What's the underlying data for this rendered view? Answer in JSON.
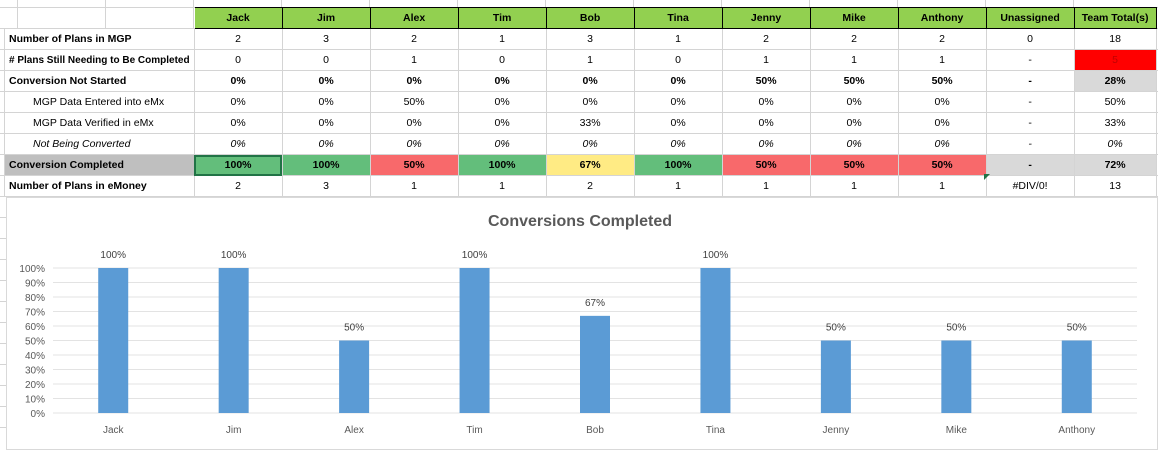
{
  "sheet": {
    "header": [
      "Jack",
      "Jim",
      "Alex",
      "Tim",
      "Bob",
      "Tina",
      "Jenny",
      "Mike",
      "Anthony",
      "Unassigned",
      "Team Total(s)"
    ],
    "rows": {
      "plans_mgp": {
        "label": "Number of Plans in MGP",
        "values": [
          "2",
          "3",
          "2",
          "1",
          "3",
          "1",
          "2",
          "2",
          "2",
          "0",
          "18"
        ]
      },
      "still_needing": {
        "label": "# Plans Still Needing to Be Completed",
        "values": [
          "0",
          "0",
          "1",
          "0",
          "1",
          "0",
          "1",
          "1",
          "1",
          "-",
          "5"
        ]
      },
      "not_started": {
        "label": "Conversion Not Started",
        "values": [
          "0%",
          "0%",
          "0%",
          "0%",
          "0%",
          "0%",
          "50%",
          "50%",
          "50%",
          "-",
          "28%"
        ]
      },
      "data_entered": {
        "label": "MGP Data Entered into eMx",
        "values": [
          "0%",
          "0%",
          "50%",
          "0%",
          "0%",
          "0%",
          "0%",
          "0%",
          "0%",
          "-",
          "50%"
        ]
      },
      "data_verified": {
        "label": "MGP Data Verified in eMx",
        "values": [
          "0%",
          "0%",
          "0%",
          "0%",
          "33%",
          "0%",
          "0%",
          "0%",
          "0%",
          "-",
          "33%"
        ]
      },
      "not_converted": {
        "label": "Not Being Converted",
        "values": [
          "0%",
          "0%",
          "0%",
          "0%",
          "0%",
          "0%",
          "0%",
          "0%",
          "0%",
          "-",
          "0%"
        ]
      },
      "completed": {
        "label": "Conversion Completed",
        "values": [
          "100%",
          "100%",
          "50%",
          "100%",
          "67%",
          "100%",
          "50%",
          "50%",
          "50%",
          "-",
          "72%"
        ]
      },
      "plans_emoney": {
        "label": "Number of Plans in eMoney",
        "values": [
          "2",
          "3",
          "1",
          "1",
          "2",
          "1",
          "1",
          "1",
          "1",
          "#DIV/0!",
          "13"
        ]
      }
    },
    "completed_colors": [
      "g",
      "g",
      "r",
      "g",
      "y",
      "g",
      "r",
      "r",
      "r",
      "",
      "total"
    ]
  },
  "chart_data": {
    "type": "bar",
    "title": "Conversions Completed",
    "categories": [
      "Jack",
      "Jim",
      "Alex",
      "Tim",
      "Bob",
      "Tina",
      "Jenny",
      "Mike",
      "Anthony"
    ],
    "values": [
      100,
      100,
      50,
      100,
      67,
      100,
      50,
      50,
      50
    ],
    "data_labels": [
      "100%",
      "100%",
      "50%",
      "100%",
      "67%",
      "100%",
      "50%",
      "50%",
      "50%"
    ],
    "ylim": [
      0,
      100
    ],
    "yticks": [
      "0%",
      "10%",
      "20%",
      "30%",
      "40%",
      "50%",
      "60%",
      "70%",
      "80%",
      "90%",
      "100%"
    ],
    "bar_color": "#5b9bd5",
    "grid": true,
    "legend": "none"
  }
}
